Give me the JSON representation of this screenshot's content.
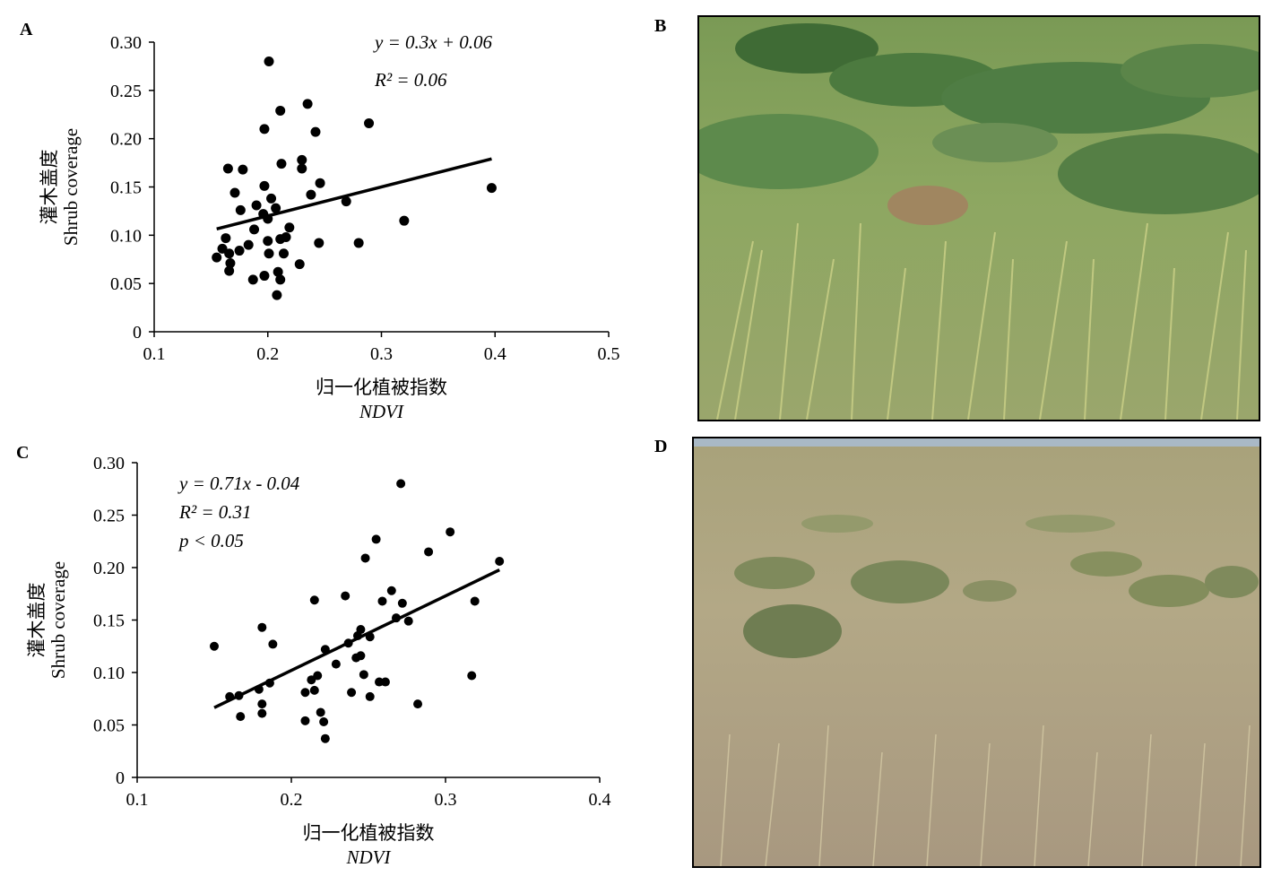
{
  "panels": {
    "a": "A",
    "b": "B",
    "c": "C",
    "d": "D"
  },
  "chart_data": [
    {
      "type": "scatter",
      "panel": "A",
      "xlabel_cn": "归一化植被指数",
      "xlabel_en": "NDVI",
      "ylabel_cn": "灌木盖度",
      "ylabel_en": "Shrub coverage",
      "xlim": [
        0.1,
        0.5
      ],
      "ylim": [
        0,
        0.3
      ],
      "xticks": [
        "0.1",
        "0.2",
        "0.3",
        "0.4",
        "0.5"
      ],
      "yticks": [
        "0",
        "0.05",
        "0.10",
        "0.15",
        "0.20",
        "0.25",
        "0.30"
      ],
      "equation": "y = 0.3x + 0.06",
      "r2": "R² = 0.06",
      "trendline": {
        "slope": 0.3,
        "intercept": 0.06,
        "x_range": [
          0.155,
          0.397
        ]
      },
      "points": [
        [
          0.201,
          0.28
        ],
        [
          0.235,
          0.236
        ],
        [
          0.211,
          0.229
        ],
        [
          0.289,
          0.216
        ],
        [
          0.197,
          0.21
        ],
        [
          0.242,
          0.207
        ],
        [
          0.165,
          0.169
        ],
        [
          0.178,
          0.168
        ],
        [
          0.212,
          0.174
        ],
        [
          0.23,
          0.178
        ],
        [
          0.23,
          0.169
        ],
        [
          0.246,
          0.154
        ],
        [
          0.197,
          0.151
        ],
        [
          0.171,
          0.144
        ],
        [
          0.238,
          0.142
        ],
        [
          0.203,
          0.138
        ],
        [
          0.269,
          0.135
        ],
        [
          0.397,
          0.149
        ],
        [
          0.19,
          0.131
        ],
        [
          0.176,
          0.126
        ],
        [
          0.207,
          0.128
        ],
        [
          0.196,
          0.122
        ],
        [
          0.2,
          0.117
        ],
        [
          0.32,
          0.115
        ],
        [
          0.188,
          0.106
        ],
        [
          0.219,
          0.108
        ],
        [
          0.163,
          0.097
        ],
        [
          0.211,
          0.096
        ],
        [
          0.216,
          0.098
        ],
        [
          0.2,
          0.094
        ],
        [
          0.245,
          0.092
        ],
        [
          0.28,
          0.092
        ],
        [
          0.183,
          0.09
        ],
        [
          0.175,
          0.084
        ],
        [
          0.16,
          0.086
        ],
        [
          0.166,
          0.081
        ],
        [
          0.201,
          0.081
        ],
        [
          0.214,
          0.081
        ],
        [
          0.155,
          0.077
        ],
        [
          0.167,
          0.071
        ],
        [
          0.228,
          0.07
        ],
        [
          0.166,
          0.063
        ],
        [
          0.197,
          0.058
        ],
        [
          0.209,
          0.062
        ],
        [
          0.187,
          0.054
        ],
        [
          0.211,
          0.054
        ],
        [
          0.208,
          0.038
        ]
      ]
    },
    {
      "type": "scatter",
      "panel": "C",
      "xlabel_cn": "归一化植被指数",
      "xlabel_en": "NDVI",
      "ylabel_cn": "灌木盖度",
      "ylabel_en": "Shrub coverage",
      "xlim": [
        0.1,
        0.4
      ],
      "ylim": [
        0,
        0.3
      ],
      "xticks": [
        "0.1",
        "0.2",
        "0.3",
        "0.4"
      ],
      "yticks": [
        "0",
        "0.05",
        "0.10",
        "0.15",
        "0.20",
        "0.25",
        "0.30"
      ],
      "equation": "y = 0.71x - 0.04",
      "r2": "R² = 0.31",
      "pvalue": "p < 0.05",
      "trendline": {
        "slope": 0.71,
        "intercept": -0.04,
        "x_range": [
          0.15,
          0.335
        ]
      },
      "points": [
        [
          0.271,
          0.28
        ],
        [
          0.303,
          0.234
        ],
        [
          0.255,
          0.227
        ],
        [
          0.289,
          0.215
        ],
        [
          0.248,
          0.209
        ],
        [
          0.335,
          0.206
        ],
        [
          0.265,
          0.178
        ],
        [
          0.235,
          0.173
        ],
        [
          0.215,
          0.169
        ],
        [
          0.259,
          0.168
        ],
        [
          0.272,
          0.166
        ],
        [
          0.319,
          0.168
        ],
        [
          0.268,
          0.152
        ],
        [
          0.276,
          0.149
        ],
        [
          0.181,
          0.143
        ],
        [
          0.245,
          0.141
        ],
        [
          0.243,
          0.135
        ],
        [
          0.251,
          0.134
        ],
        [
          0.15,
          0.125
        ],
        [
          0.188,
          0.127
        ],
        [
          0.237,
          0.128
        ],
        [
          0.222,
          0.122
        ],
        [
          0.245,
          0.116
        ],
        [
          0.242,
          0.114
        ],
        [
          0.229,
          0.108
        ],
        [
          0.217,
          0.097
        ],
        [
          0.213,
          0.093
        ],
        [
          0.317,
          0.097
        ],
        [
          0.247,
          0.098
        ],
        [
          0.257,
          0.091
        ],
        [
          0.261,
          0.091
        ],
        [
          0.186,
          0.09
        ],
        [
          0.179,
          0.084
        ],
        [
          0.215,
          0.083
        ],
        [
          0.209,
          0.081
        ],
        [
          0.239,
          0.081
        ],
        [
          0.16,
          0.077
        ],
        [
          0.166,
          0.078
        ],
        [
          0.251,
          0.077
        ],
        [
          0.181,
          0.07
        ],
        [
          0.282,
          0.07
        ],
        [
          0.181,
          0.061
        ],
        [
          0.219,
          0.062
        ],
        [
          0.167,
          0.058
        ],
        [
          0.209,
          0.054
        ],
        [
          0.221,
          0.053
        ],
        [
          0.222,
          0.037
        ]
      ]
    }
  ]
}
